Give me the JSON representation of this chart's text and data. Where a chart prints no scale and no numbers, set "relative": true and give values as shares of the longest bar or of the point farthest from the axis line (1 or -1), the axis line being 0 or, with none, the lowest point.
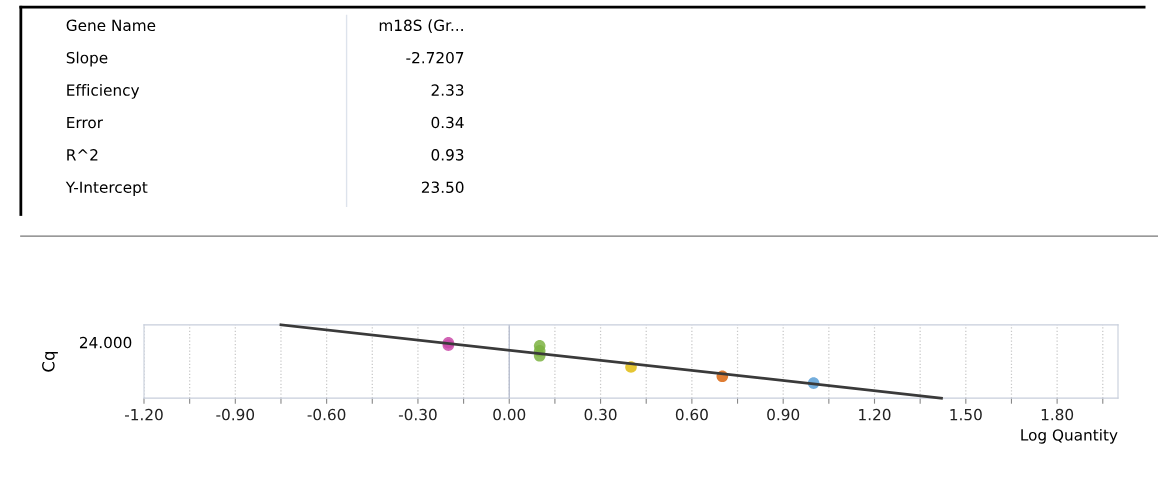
{
  "chart_data": [
    {
      "type": "other",
      "annotations": [
        "Gene Name",
        "m18S (Gr...",
        "Slope",
        "-2.7207",
        "Efficiency",
        "2.33",
        "Error",
        "0.34",
        "R^2",
        "0.93",
        "Y-Intercept",
        "23.50"
      ]
    },
    {
      "type": "scatter",
      "ylabel": "Cq",
      "xlabel": "Log Quantity",
      "relative": true,
      "annotations": [
        "24.000"
      ],
      "xlim": [
        -1.2,
        2.0
      ],
      "xticks": [
        {
          "value": -1.2,
          "label": "-1.20"
        },
        {
          "value": -1.05,
          "label": null
        },
        {
          "value": -0.9,
          "label": "-0.90"
        },
        {
          "value": -0.75,
          "label": null
        },
        {
          "value": -0.6,
          "label": "-0.60"
        },
        {
          "value": -0.45,
          "label": null
        },
        {
          "value": -0.3,
          "label": "-0.30"
        },
        {
          "value": -0.15,
          "label": null
        },
        {
          "value": 0.0,
          "label": "0.00"
        },
        {
          "value": 0.15,
          "label": null
        },
        {
          "value": 0.3,
          "label": "0.30"
        },
        {
          "value": 0.45,
          "label": null
        },
        {
          "value": 0.6,
          "label": "0.60"
        },
        {
          "value": 0.75,
          "label": null
        },
        {
          "value": 0.9,
          "label": "0.90"
        },
        {
          "value": 1.05,
          "label": null
        },
        {
          "value": 1.2,
          "label": "1.20"
        },
        {
          "value": 1.35,
          "label": null
        },
        {
          "value": 1.5,
          "label": "1.50"
        },
        {
          "value": 1.65,
          "label": null
        },
        {
          "value": 1.8,
          "label": "1.80"
        },
        {
          "value": 1.95,
          "label": null
        }
      ],
      "grid": "x",
      "marker": "circle",
      "ref_lines": [
        {
          "axis": "x",
          "value": 0,
          "label": null,
          "color": "#b8bfd0",
          "line_style": "solid"
        }
      ],
      "series": [
        {
          "type": "scatter",
          "x": [
            -0.2,
            -0.2,
            0.1,
            0.1,
            0.1,
            0.4,
            0.7,
            1.0
          ],
          "values": [
            0.756,
            0.722,
            0.714,
            0.646,
            0.578,
            0.425,
            0.298,
            0.205
          ],
          "colors": [
            "#c94aa8",
            "#c94aa8",
            "#7cb342",
            "#7cb342",
            "#7cb342",
            "#e0bc10",
            "#d9660f",
            "#5a9fd6"
          ]
        },
        {
          "type": "line",
          "x": [
            -0.75,
            1.42
          ],
          "values": [
            1,
            0
          ],
          "color": "#3a3a3a",
          "marker": "none"
        }
      ]
    }
  ]
}
